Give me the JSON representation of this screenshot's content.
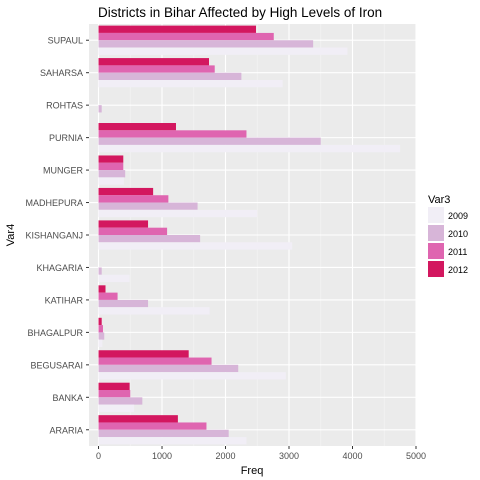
{
  "chart_data": {
    "type": "bar",
    "orientation": "horizontal",
    "title": "Districts in Bihar Affected by High Levels of Iron",
    "xlabel": "Freq",
    "ylabel": "Var4",
    "xlim": [
      -150,
      5000
    ],
    "x_ticks": [
      0,
      1000,
      2000,
      3000,
      4000,
      5000
    ],
    "x_tick_labels": [
      "0",
      "1000",
      "2000",
      "3000",
      "4000",
      "5000"
    ],
    "grid": true,
    "legend_position": "right",
    "legend_title": "Var3",
    "categories": [
      "SUPAUL",
      "SAHARSA",
      "ROHTAS",
      "PURNIA",
      "MUNGER",
      "MADHEPURA",
      "KISHANGANJ",
      "KHAGARIA",
      "KATIHAR",
      "BHAGALPUR",
      "BEGUSARAI",
      "BANKA",
      "ARARIA"
    ],
    "series": [
      {
        "name": "2012",
        "color": "#D3175F",
        "values": [
          2480,
          1740,
          0,
          1220,
          390,
          860,
          780,
          0,
          110,
          50,
          1420,
          490,
          1250
        ]
      },
      {
        "name": "2011",
        "color": "#DF65B0",
        "values": [
          2760,
          1830,
          0,
          2330,
          390,
          1100,
          1080,
          0,
          300,
          70,
          1780,
          500,
          1700
        ]
      },
      {
        "name": "2010",
        "color": "#D7B5D8",
        "values": [
          3380,
          2250,
          50,
          3500,
          420,
          1560,
          1600,
          50,
          780,
          90,
          2200,
          690,
          2050
        ]
      },
      {
        "name": "2009",
        "color": "#F1EEF6",
        "values": [
          3920,
          2900,
          0,
          4750,
          400,
          2500,
          3050,
          490,
          1750,
          60,
          2950,
          560,
          2330
        ]
      }
    ]
  }
}
